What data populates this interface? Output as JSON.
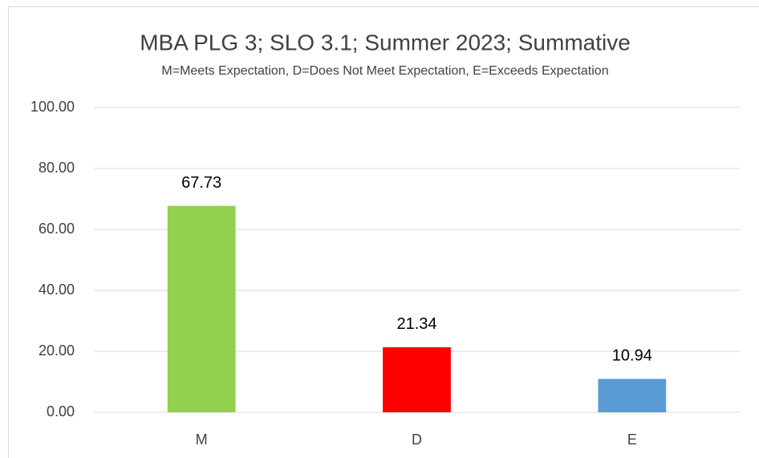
{
  "chart_data": {
    "type": "bar",
    "title": "MBA PLG 3; SLO 3.1; Summer 2023; Summative",
    "subtitle": "M=Meets Expectation, D=Does Not Meet Expectation, E=Exceeds Expectation",
    "categories": [
      "M",
      "D",
      "E"
    ],
    "values": [
      67.73,
      21.34,
      10.94
    ],
    "colors": [
      "#92d050",
      "#ff0000",
      "#5b9bd5"
    ],
    "ylim": [
      0,
      100
    ],
    "yticks": [
      {
        "value": 0,
        "label": "0.00"
      },
      {
        "value": 20,
        "label": "20.00"
      },
      {
        "value": 40,
        "label": "40.00"
      },
      {
        "value": 60,
        "label": "60.00"
      },
      {
        "value": 80,
        "label": "80.00"
      },
      {
        "value": 100,
        "label": "100.00"
      }
    ],
    "grid": true
  }
}
